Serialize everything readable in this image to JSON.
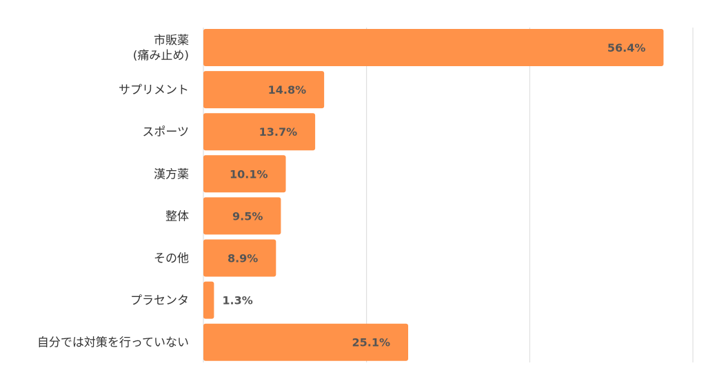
{
  "chart_data": {
    "type": "bar",
    "orientation": "horizontal",
    "categories": [
      [
        "市販薬",
        "(痛み止め)"
      ],
      [
        "サプリメント"
      ],
      [
        "スポーツ"
      ],
      [
        "漢方薬"
      ],
      [
        "整体"
      ],
      [
        "その他"
      ],
      [
        "プラセンタ"
      ],
      [
        "自分では対策を行っていない"
      ]
    ],
    "values": [
      56.4,
      14.8,
      13.7,
      10.1,
      9.5,
      8.9,
      1.3,
      25.1
    ],
    "value_labels": [
      "56.4%",
      "14.8%",
      "13.7%",
      "10.1%",
      "9.5%",
      "8.9%",
      "1.3%",
      "25.1%"
    ],
    "xlim": [
      0,
      60
    ],
    "grid": true,
    "legend": "none",
    "bar_color": "#ff9249",
    "grid_color": "#d9d9d9"
  }
}
